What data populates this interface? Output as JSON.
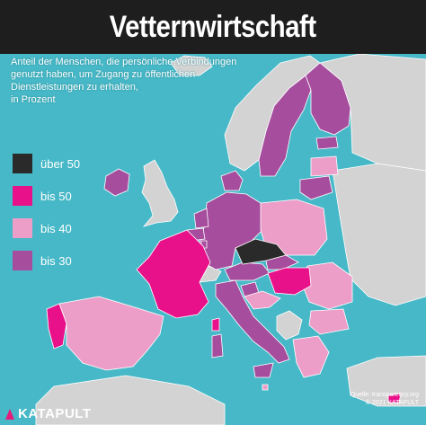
{
  "header": {
    "title": "Vetternwirtschaft"
  },
  "subtitle": {
    "lines": [
      "Anteil der Menschen, die persönliche Verbindungen",
      "genutzt haben, um Zugang zu öffentlichen",
      "Dienstleistungen zu erhalten,",
      "in Prozent"
    ]
  },
  "legend": {
    "items": [
      {
        "label": "über 50",
        "color": "#2a2a2a"
      },
      {
        "label": "bis 50",
        "color": "#e8118a"
      },
      {
        "label": "bis 40",
        "color": "#ec9ec8"
      },
      {
        "label": "bis 30",
        "color": "#a64d9e"
      }
    ]
  },
  "colors": {
    "sea": "#47b8c7",
    "non_eu_land": "#d3d3d3",
    "header_bg": "#1e1e1e"
  },
  "source": {
    "line1": "Quelle: transparency.org",
    "line2": "© 2021 KATAPULT"
  },
  "brand": {
    "name": "KATAPULT",
    "mark_icon": "katapult-triangle-icon"
  }
}
